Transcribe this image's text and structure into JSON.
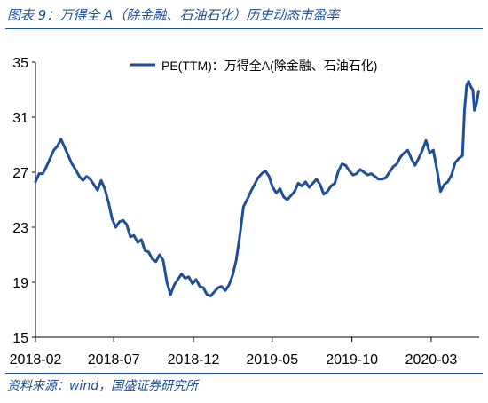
{
  "header": {
    "title": "图表 9：万得全 A（除金融、石油石化）历史动态市盈率"
  },
  "footer": {
    "source": "资料来源：wind，国盛证券研究所"
  },
  "chart_data": {
    "type": "line",
    "title": "",
    "xlabel": "",
    "ylabel": "",
    "ylim": [
      15,
      35
    ],
    "yticks": [
      15,
      19,
      23,
      27,
      31,
      35
    ],
    "xticks": [
      "2018-02",
      "2018-07",
      "2018-12",
      "2019-05",
      "2019-10",
      "2020-03"
    ],
    "xrange": [
      "2018-02-01",
      "2020-06-01"
    ],
    "grid": false,
    "legend": "top-right",
    "color": "#1f4e9a",
    "series": [
      {
        "name": "PE(TTM)：万得全A(除金融、石油石化)",
        "points": [
          [
            "2018-02-01",
            26.3
          ],
          [
            "2018-02-08",
            26.9
          ],
          [
            "2018-02-15",
            26.9
          ],
          [
            "2018-02-22",
            27.4
          ],
          [
            "2018-03-01",
            28.0
          ],
          [
            "2018-03-08",
            28.6
          ],
          [
            "2018-03-15",
            28.9
          ],
          [
            "2018-03-22",
            29.4
          ],
          [
            "2018-03-29",
            28.8
          ],
          [
            "2018-04-05",
            28.2
          ],
          [
            "2018-04-12",
            27.6
          ],
          [
            "2018-04-19",
            27.2
          ],
          [
            "2018-04-26",
            26.7
          ],
          [
            "2018-05-03",
            26.4
          ],
          [
            "2018-05-10",
            26.7
          ],
          [
            "2018-05-17",
            26.5
          ],
          [
            "2018-05-24",
            26.1
          ],
          [
            "2018-05-31",
            25.7
          ],
          [
            "2018-06-07",
            26.4
          ],
          [
            "2018-06-14",
            25.8
          ],
          [
            "2018-06-21",
            24.8
          ],
          [
            "2018-06-28",
            23.6
          ],
          [
            "2018-07-05",
            23.0
          ],
          [
            "2018-07-12",
            23.4
          ],
          [
            "2018-07-19",
            23.5
          ],
          [
            "2018-07-26",
            23.2
          ],
          [
            "2018-08-02",
            22.3
          ],
          [
            "2018-08-09",
            22.4
          ],
          [
            "2018-08-16",
            21.9
          ],
          [
            "2018-08-23",
            22.1
          ],
          [
            "2018-08-30",
            21.3
          ],
          [
            "2018-09-06",
            21.2
          ],
          [
            "2018-09-13",
            20.7
          ],
          [
            "2018-09-20",
            20.5
          ],
          [
            "2018-09-27",
            21.0
          ],
          [
            "2018-10-04",
            20.6
          ],
          [
            "2018-10-11",
            19.0
          ],
          [
            "2018-10-18",
            18.1
          ],
          [
            "2018-10-25",
            18.8
          ],
          [
            "2018-11-01",
            19.2
          ],
          [
            "2018-11-08",
            19.6
          ],
          [
            "2018-11-15",
            19.3
          ],
          [
            "2018-11-22",
            19.4
          ],
          [
            "2018-11-29",
            18.9
          ],
          [
            "2018-12-06",
            19.2
          ],
          [
            "2018-12-13",
            18.7
          ],
          [
            "2018-12-20",
            18.6
          ],
          [
            "2018-12-27",
            18.1
          ],
          [
            "2019-01-03",
            18.0
          ],
          [
            "2019-01-10",
            18.3
          ],
          [
            "2019-01-17",
            18.6
          ],
          [
            "2019-01-24",
            18.7
          ],
          [
            "2019-01-31",
            18.4
          ],
          [
            "2019-02-07",
            18.8
          ],
          [
            "2019-02-14",
            19.5
          ],
          [
            "2019-02-21",
            20.6
          ],
          [
            "2019-02-28",
            22.4
          ],
          [
            "2019-03-07",
            24.5
          ],
          [
            "2019-03-14",
            25.0
          ],
          [
            "2019-03-21",
            25.6
          ],
          [
            "2019-03-28",
            26.1
          ],
          [
            "2019-04-04",
            26.6
          ],
          [
            "2019-04-11",
            26.9
          ],
          [
            "2019-04-18",
            27.1
          ],
          [
            "2019-04-25",
            26.7
          ],
          [
            "2019-05-02",
            25.9
          ],
          [
            "2019-05-09",
            25.5
          ],
          [
            "2019-05-16",
            25.8
          ],
          [
            "2019-05-23",
            25.2
          ],
          [
            "2019-05-30",
            25.0
          ],
          [
            "2019-06-06",
            25.3
          ],
          [
            "2019-06-13",
            25.6
          ],
          [
            "2019-06-20",
            26.2
          ],
          [
            "2019-06-27",
            26.0
          ],
          [
            "2019-07-04",
            26.3
          ],
          [
            "2019-07-11",
            25.9
          ],
          [
            "2019-07-18",
            26.2
          ],
          [
            "2019-07-25",
            26.5
          ],
          [
            "2019-08-01",
            26.1
          ],
          [
            "2019-08-08",
            25.4
          ],
          [
            "2019-08-15",
            25.6
          ],
          [
            "2019-08-22",
            26.0
          ],
          [
            "2019-08-29",
            26.2
          ],
          [
            "2019-09-05",
            27.1
          ],
          [
            "2019-09-12",
            27.6
          ],
          [
            "2019-09-19",
            27.5
          ],
          [
            "2019-09-26",
            27.1
          ],
          [
            "2019-10-03",
            26.8
          ],
          [
            "2019-10-10",
            26.9
          ],
          [
            "2019-10-17",
            27.2
          ],
          [
            "2019-10-24",
            27.0
          ],
          [
            "2019-10-31",
            26.8
          ],
          [
            "2019-11-07",
            26.9
          ],
          [
            "2019-11-14",
            26.7
          ],
          [
            "2019-11-21",
            26.5
          ],
          [
            "2019-11-28",
            26.5
          ],
          [
            "2019-12-05",
            26.6
          ],
          [
            "2019-12-12",
            27.0
          ],
          [
            "2019-12-19",
            27.4
          ],
          [
            "2019-12-26",
            27.6
          ],
          [
            "2020-01-02",
            28.1
          ],
          [
            "2020-01-09",
            28.4
          ],
          [
            "2020-01-16",
            28.6
          ],
          [
            "2020-01-23",
            28.0
          ],
          [
            "2020-01-30",
            27.5
          ],
          [
            "2020-02-06",
            28.0
          ],
          [
            "2020-02-13",
            28.6
          ],
          [
            "2020-02-20",
            29.3
          ],
          [
            "2020-02-27",
            28.4
          ],
          [
            "2020-03-05",
            28.6
          ],
          [
            "2020-03-12",
            27.2
          ],
          [
            "2020-03-19",
            25.6
          ],
          [
            "2020-03-26",
            26.1
          ],
          [
            "2020-04-02",
            26.3
          ],
          [
            "2020-04-09",
            26.8
          ],
          [
            "2020-04-16",
            27.7
          ],
          [
            "2020-04-23",
            28.0
          ],
          [
            "2020-04-30",
            28.2
          ],
          [
            "2020-05-04",
            31.5
          ],
          [
            "2020-05-08",
            33.3
          ],
          [
            "2020-05-12",
            33.6
          ],
          [
            "2020-05-16",
            33.2
          ],
          [
            "2020-05-20",
            33.0
          ],
          [
            "2020-05-23",
            31.5
          ],
          [
            "2020-05-27",
            32.0
          ],
          [
            "2020-05-31",
            32.9
          ]
        ]
      }
    ]
  }
}
